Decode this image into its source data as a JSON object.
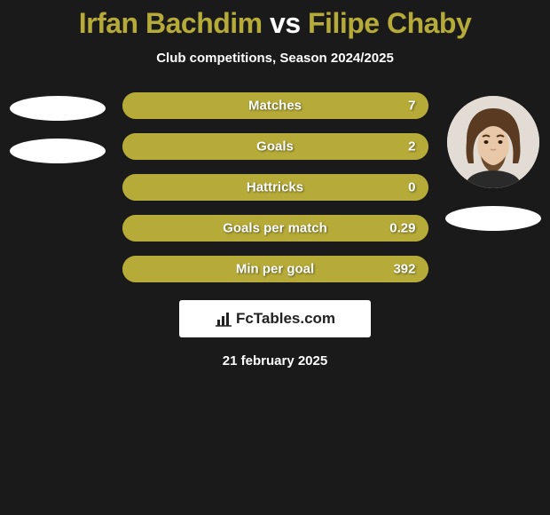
{
  "title": {
    "player1": "Irfan Bachdim",
    "vs": "vs",
    "player2": "Filipe Chaby",
    "player1_color": "#b6ab38",
    "vs_color": "#ffffff",
    "player2_color": "#b6ab38"
  },
  "subtitle": "Club competitions, Season 2024/2025",
  "colors": {
    "background": "#1a1a1a",
    "bar_track": "#b6ab38",
    "bar_fill": "#b6ab38",
    "text": "#ffffff"
  },
  "stats": [
    {
      "label": "Matches",
      "right_value": "7",
      "fill_pct": 100
    },
    {
      "label": "Goals",
      "right_value": "2",
      "fill_pct": 100
    },
    {
      "label": "Hattricks",
      "right_value": "0",
      "fill_pct": 100
    },
    {
      "label": "Goals per match",
      "right_value": "0.29",
      "fill_pct": 100
    },
    {
      "label": "Min per goal",
      "right_value": "392",
      "fill_pct": 100
    }
  ],
  "player_left": {
    "has_photo": false,
    "placeholders": 2
  },
  "player_right": {
    "has_photo": true,
    "placeholders": 1
  },
  "logo_text": "FcTables.com",
  "date": "21 february 2025"
}
